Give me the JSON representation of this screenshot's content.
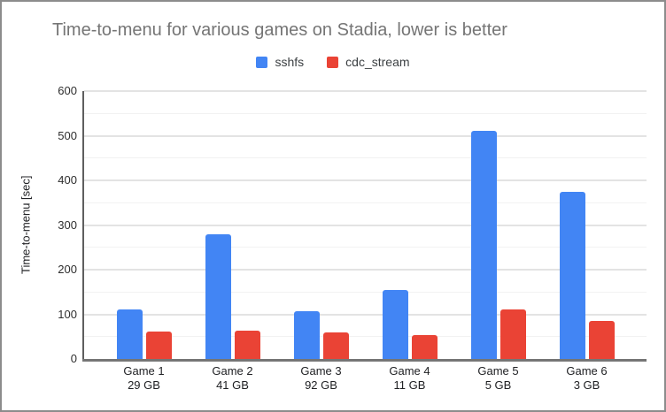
{
  "frame": {
    "background": "#ffffff",
    "border_color": "#8c8c8c"
  },
  "chart_data": {
    "type": "bar",
    "title": "Time-to-menu for various games on Stadia, lower is better",
    "title_color": "#757575",
    "categories": [
      "Game 1",
      "Game 2",
      "Game 3",
      "Game 4",
      "Game 5",
      "Game 6"
    ],
    "category_sublabels": [
      "29 GB",
      "41 GB",
      "92 GB",
      "11 GB",
      "5 GB",
      "3 GB"
    ],
    "series": [
      {
        "name": "sshfs",
        "color": "#4285F4",
        "values": [
          110,
          280,
          107,
          154,
          510,
          374
        ]
      },
      {
        "name": "cdc_stream",
        "color": "#EA4335",
        "values": [
          62,
          63,
          59,
          54,
          110,
          86
        ]
      }
    ],
    "xlabel": "",
    "ylabel": "Time-to-menu [sec]",
    "ylim": [
      0,
      600
    ],
    "y_major_ticks": [
      0,
      100,
      200,
      300,
      400,
      500,
      600
    ],
    "y_minor_step": 50,
    "grid": true,
    "legend_position": "top",
    "major_grid_color": "#e3e3e3",
    "minor_grid_color": "#f2f2f2",
    "y_axis_line_color": "#5f5f5f",
    "x_axis_line_color": "#757575",
    "tick_label_color": "#2e2e2e",
    "category_label_color": "#202124"
  }
}
